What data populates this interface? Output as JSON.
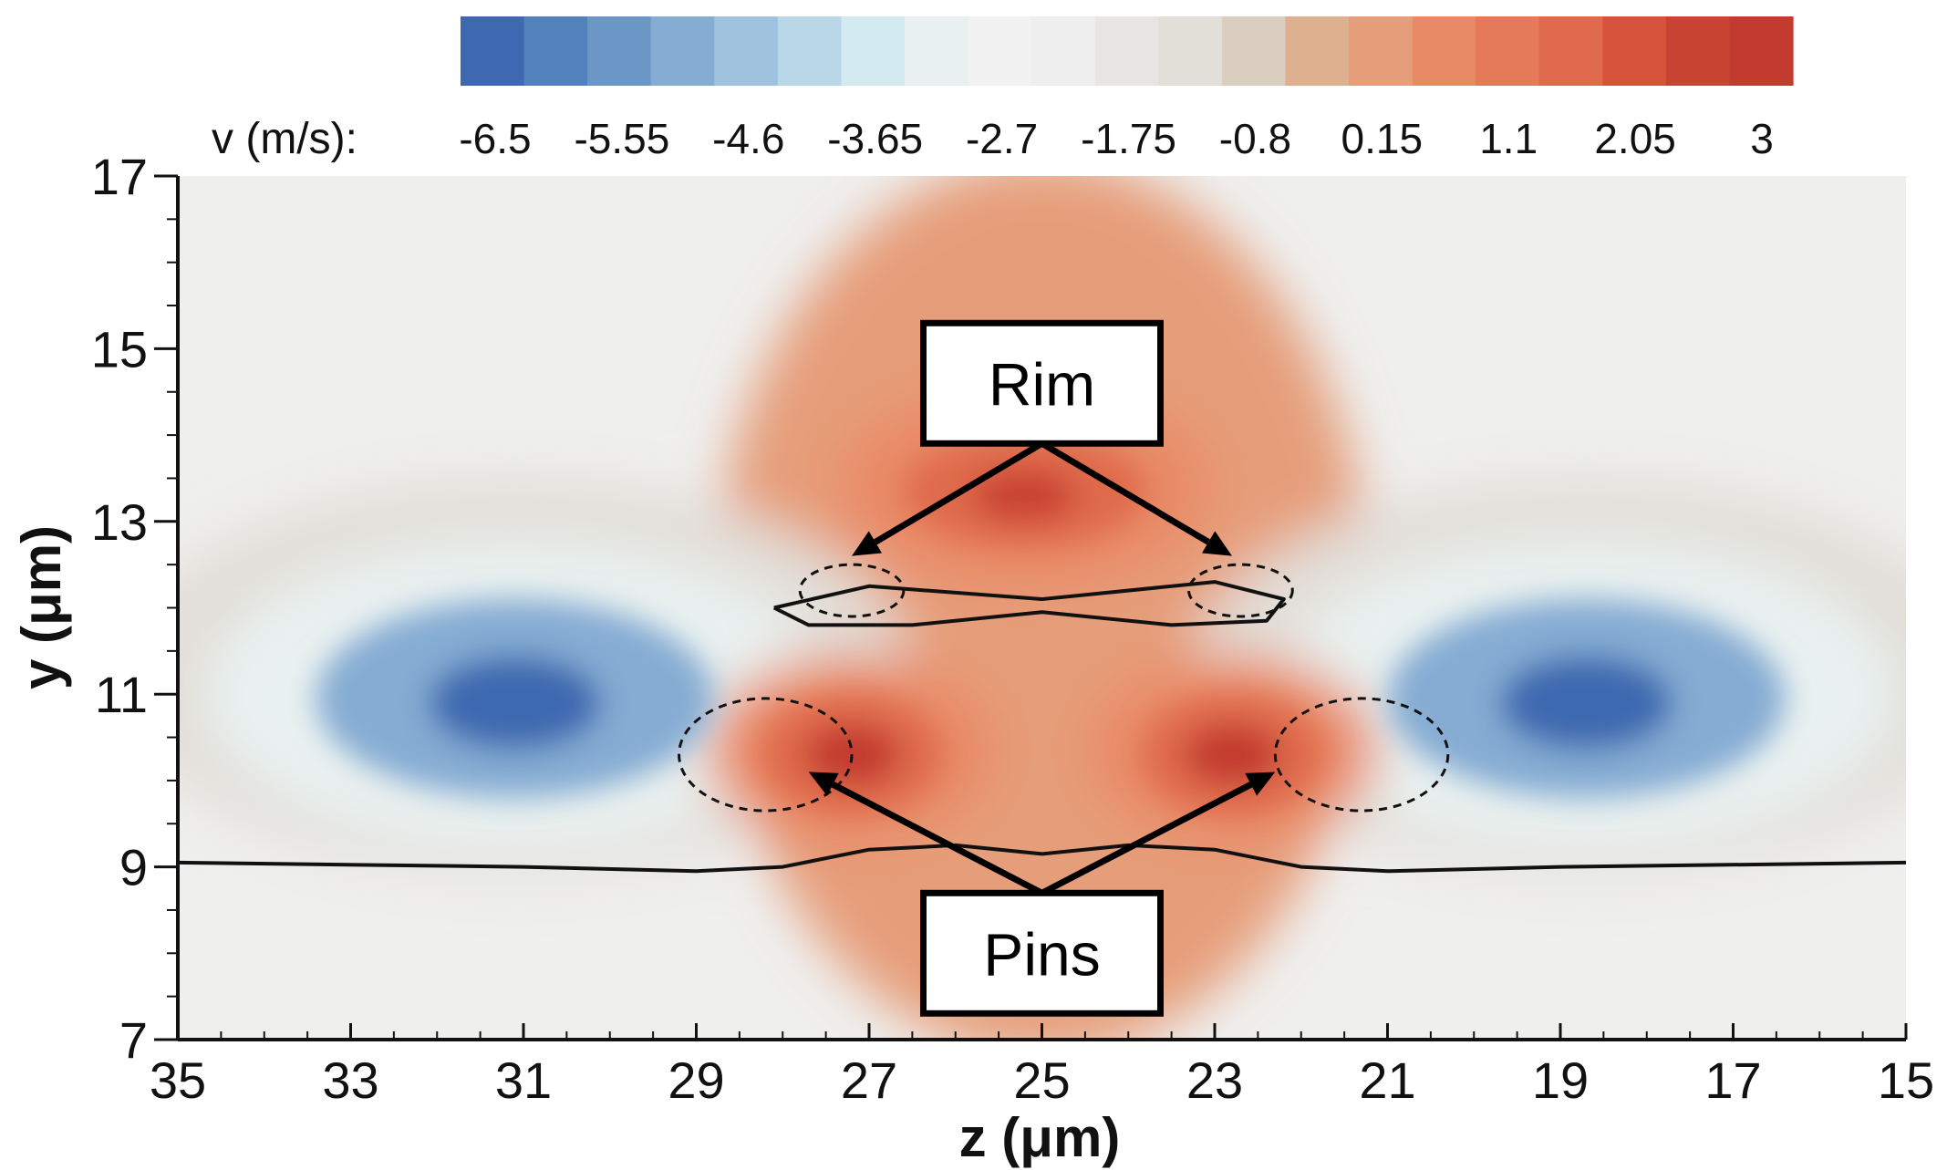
{
  "chart_data": {
    "type": "heatmap",
    "variable_label": "v (m/s):",
    "xlabel": "z (μm)",
    "ylabel": "y (μm)",
    "x_range": [
      35,
      15
    ],
    "y_range": [
      7,
      17
    ],
    "x_axis_reversed": true,
    "x_ticks": [
      "35",
      "33",
      "31",
      "29",
      "27",
      "25",
      "23",
      "21",
      "19",
      "17",
      "15"
    ],
    "y_ticks": [
      "7",
      "9",
      "11",
      "13",
      "15",
      "17"
    ],
    "colorbar": {
      "range": [
        -6.5,
        3
      ],
      "levels": 21,
      "tick_labels": [
        "-6.5",
        "-5.55",
        "-4.6",
        "-3.65",
        "-2.7",
        "-1.75",
        "-0.8",
        "0.15",
        "1.1",
        "2.05",
        "3"
      ],
      "colors": [
        "#3e69b0",
        "#5381bb",
        "#6b97c7",
        "#85acd3",
        "#9fc2de",
        "#bad7e8",
        "#d4eaf1",
        "#e9f1f0",
        "#f1f1f1",
        "#eeeeee",
        "#e8e6e3",
        "#e2ded8",
        "#d9cebf",
        "#ddb08f",
        "#e69e7a",
        "#e98a66",
        "#e57a58",
        "#df6a4c",
        "#d7543c",
        "#c94333",
        "#c33a2e"
      ]
    },
    "velocity_features": [
      {
        "kind": "min",
        "z": 31.1,
        "y": 10.9,
        "value": -6.5
      },
      {
        "kind": "min",
        "z": 18.7,
        "y": 10.9,
        "value": -6.5
      },
      {
        "kind": "max",
        "z": 27.2,
        "y": 10.3,
        "value": 3
      },
      {
        "kind": "max",
        "z": 22.8,
        "y": 10.3,
        "value": 3
      },
      {
        "kind": "max",
        "z": 25.2,
        "y": 13.3,
        "value": 2.05
      }
    ],
    "interface_lines": [
      {
        "name": "lower-interface",
        "points": [
          [
            35,
            9.05
          ],
          [
            31,
            9.0
          ],
          [
            29,
            8.95
          ],
          [
            28,
            9.0
          ],
          [
            27,
            9.2
          ],
          [
            26,
            9.25
          ],
          [
            25,
            9.15
          ],
          [
            24,
            9.25
          ],
          [
            23,
            9.2
          ],
          [
            22,
            9.0
          ],
          [
            21,
            8.95
          ],
          [
            19,
            9.0
          ],
          [
            15,
            9.05
          ]
        ]
      },
      {
        "name": "droplet",
        "points": [
          [
            28.1,
            12.0
          ],
          [
            27.0,
            12.25
          ],
          [
            25.0,
            12.1
          ],
          [
            23.0,
            12.3
          ],
          [
            22.2,
            12.1
          ],
          [
            22.4,
            11.85
          ],
          [
            23.5,
            11.8
          ],
          [
            25.0,
            11.95
          ],
          [
            26.5,
            11.8
          ],
          [
            27.7,
            11.8
          ],
          [
            28.1,
            12.0
          ]
        ]
      }
    ],
    "vortex_markers": [
      {
        "group": "rim",
        "z": 27.2,
        "y": 12.2,
        "rz": 0.6,
        "ry": 0.3
      },
      {
        "group": "rim",
        "z": 22.7,
        "y": 12.2,
        "rz": 0.6,
        "ry": 0.3
      },
      {
        "group": "pins",
        "z": 28.2,
        "y": 10.3,
        "rz": 1.0,
        "ry": 0.65
      },
      {
        "group": "pins",
        "z": 21.3,
        "y": 10.3,
        "rz": 1.0,
        "ry": 0.65
      }
    ],
    "annotations": [
      {
        "id": "rim",
        "text": "Rim",
        "box": {
          "z": 25.0,
          "y": 14.6
        },
        "arrows": [
          [
            27.2,
            12.6
          ],
          [
            22.8,
            12.6
          ]
        ]
      },
      {
        "id": "pins",
        "text": "Pins",
        "box": {
          "z": 25.0,
          "y": 8.0
        },
        "arrows": [
          [
            27.7,
            10.1
          ],
          [
            22.3,
            10.1
          ]
        ]
      }
    ]
  }
}
